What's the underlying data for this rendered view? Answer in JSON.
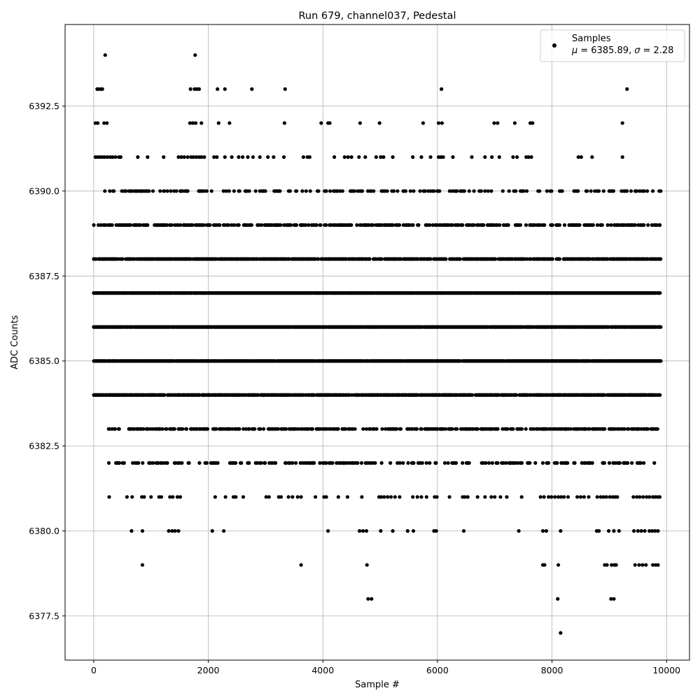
{
  "chart_data": {
    "type": "scatter",
    "title": "Run 679, channel037, Pedestal",
    "xlabel": "Sample #",
    "ylabel": "ADC Counts",
    "xlim": [
      -500,
      10400
    ],
    "ylim": [
      6376.2,
      6394.9
    ],
    "xticks": [
      0,
      2000,
      4000,
      6000,
      8000,
      10000
    ],
    "xtick_labels": [
      "0",
      "2000",
      "4000",
      "6000",
      "8000",
      "10000"
    ],
    "yticks": [
      6377.5,
      6380.0,
      6382.5,
      6385.0,
      6387.5,
      6390.0,
      6392.5
    ],
    "ytick_labels": [
      "6377.5",
      "6380.0",
      "6382.5",
      "6385.0",
      "6387.5",
      "6390.0",
      "6392.5"
    ],
    "grid": true,
    "legend_position": "top-right",
    "legend": {
      "label": "Samples",
      "stats_mu_symbol": "μ",
      "stats_sigma_symbol": "σ",
      "stats_mu_value": "= 6385.89,",
      "stats_sigma_value": "= 2.28"
    },
    "marker_color": "#000000",
    "series": [
      {
        "name": "Samples",
        "x_range": [
          0,
          9900
        ],
        "mean": 6385.89,
        "std": 2.28,
        "dense_levels": [
          6382,
          6383,
          6384,
          6385,
          6386,
          6387,
          6388,
          6389,
          6390
        ],
        "points": [
          [
            200,
            6394
          ],
          [
            1770,
            6394
          ],
          [
            60,
            6393
          ],
          [
            80,
            6393
          ],
          [
            120,
            6393
          ],
          [
            150,
            6393
          ],
          [
            1690,
            6393
          ],
          [
            1760,
            6393
          ],
          [
            1800,
            6393
          ],
          [
            1840,
            6393
          ],
          [
            2160,
            6393
          ],
          [
            2290,
            6393
          ],
          [
            2760,
            6393
          ],
          [
            3340,
            6393
          ],
          [
            6070,
            6393
          ],
          [
            9310,
            6393
          ],
          [
            30,
            6392
          ],
          [
            70,
            6392
          ],
          [
            180,
            6392
          ],
          [
            230,
            6392
          ],
          [
            1680,
            6392
          ],
          [
            1730,
            6392
          ],
          [
            1780,
            6392
          ],
          [
            1880,
            6392
          ],
          [
            2180,
            6392
          ],
          [
            2370,
            6392
          ],
          [
            3330,
            6392
          ],
          [
            3970,
            6392
          ],
          [
            4090,
            6392
          ],
          [
            4120,
            6392
          ],
          [
            4650,
            6392
          ],
          [
            4990,
            6392
          ],
          [
            5750,
            6392
          ],
          [
            6020,
            6392
          ],
          [
            6080,
            6392
          ],
          [
            6990,
            6392
          ],
          [
            7050,
            6392
          ],
          [
            7350,
            6392
          ],
          [
            7620,
            6392
          ],
          [
            7660,
            6392
          ],
          [
            9230,
            6392
          ],
          [
            4850,
            6378
          ],
          [
            4790,
            6378
          ],
          [
            8100,
            6378
          ],
          [
            9030,
            6378
          ],
          [
            9080,
            6378
          ],
          [
            8150,
            6377
          ],
          [
            850,
            6379
          ],
          [
            3620,
            6379
          ],
          [
            4770,
            6379
          ],
          [
            7840,
            6379
          ],
          [
            7870,
            6379
          ],
          [
            8110,
            6379
          ],
          [
            8920,
            6379
          ],
          [
            8960,
            6379
          ],
          [
            9040,
            6379
          ],
          [
            9090,
            6379
          ],
          [
            9120,
            6379
          ],
          [
            9450,
            6379
          ],
          [
            9520,
            6379
          ],
          [
            9580,
            6379
          ],
          [
            9640,
            6379
          ],
          [
            9760,
            6379
          ],
          [
            9810,
            6379
          ],
          [
            9850,
            6379
          ],
          [
            660,
            6380
          ],
          [
            850,
            6380
          ],
          [
            1310,
            6380
          ],
          [
            1370,
            6380
          ],
          [
            1420,
            6380
          ],
          [
            1480,
            6380
          ],
          [
            2070,
            6380
          ],
          [
            2270,
            6380
          ],
          [
            4090,
            6380
          ],
          [
            4640,
            6380
          ],
          [
            4700,
            6380
          ],
          [
            4760,
            6380
          ],
          [
            5010,
            6380
          ],
          [
            5220,
            6380
          ],
          [
            5480,
            6380
          ],
          [
            5580,
            6380
          ],
          [
            5940,
            6380
          ],
          [
            5980,
            6380
          ],
          [
            6460,
            6380
          ],
          [
            7420,
            6380
          ],
          [
            7840,
            6380
          ],
          [
            7900,
            6380
          ],
          [
            8150,
            6380
          ],
          [
            8780,
            6380
          ],
          [
            8820,
            6380
          ],
          [
            8990,
            6380
          ],
          [
            9080,
            6380
          ],
          [
            9170,
            6380
          ],
          [
            9430,
            6380
          ],
          [
            9500,
            6380
          ],
          [
            9560,
            6380
          ],
          [
            9620,
            6380
          ],
          [
            9700,
            6380
          ],
          [
            9750,
            6380
          ],
          [
            9800,
            6380
          ],
          [
            9850,
            6380
          ],
          [
            270,
            6381
          ],
          [
            580,
            6381
          ],
          [
            670,
            6381
          ],
          [
            840,
            6381
          ],
          [
            880,
            6381
          ],
          [
            1000,
            6381
          ],
          [
            1140,
            6381
          ],
          [
            1180,
            6381
          ],
          [
            1330,
            6381
          ],
          [
            1380,
            6381
          ],
          [
            1460,
            6381
          ],
          [
            1510,
            6381
          ],
          [
            2120,
            6381
          ],
          [
            2300,
            6381
          ],
          [
            2440,
            6381
          ],
          [
            2480,
            6381
          ],
          [
            2610,
            6381
          ],
          [
            3010,
            6381
          ],
          [
            3060,
            6381
          ],
          [
            3230,
            6381
          ],
          [
            3270,
            6381
          ],
          [
            3400,
            6381
          ],
          [
            3470,
            6381
          ],
          [
            3560,
            6381
          ],
          [
            3620,
            6381
          ],
          [
            3870,
            6381
          ],
          [
            4020,
            6381
          ],
          [
            4060,
            6381
          ],
          [
            4270,
            6381
          ],
          [
            4430,
            6381
          ],
          [
            4680,
            6381
          ],
          [
            4980,
            6381
          ],
          [
            5020,
            6381
          ],
          [
            5070,
            6381
          ],
          [
            5130,
            6381
          ],
          [
            5190,
            6381
          ],
          [
            5260,
            6381
          ],
          [
            5340,
            6381
          ],
          [
            5570,
            6381
          ],
          [
            5650,
            6381
          ],
          [
            5720,
            6381
          ],
          [
            5810,
            6381
          ],
          [
            5950,
            6381
          ],
          [
            5990,
            6381
          ],
          [
            6210,
            6381
          ],
          [
            6440,
            6381
          ],
          [
            6480,
            6381
          ],
          [
            6530,
            6381
          ],
          [
            6700,
            6381
          ],
          [
            6830,
            6381
          ],
          [
            6940,
            6381
          ],
          [
            7000,
            6381
          ],
          [
            7100,
            6381
          ],
          [
            7210,
            6381
          ],
          [
            7470,
            6381
          ],
          [
            7800,
            6381
          ],
          [
            7860,
            6381
          ],
          [
            7940,
            6381
          ],
          [
            7990,
            6381
          ],
          [
            8050,
            6381
          ],
          [
            8110,
            6381
          ],
          [
            8160,
            6381
          ],
          [
            8210,
            6381
          ],
          [
            8280,
            6381
          ],
          [
            8440,
            6381
          ],
          [
            8500,
            6381
          ],
          [
            8560,
            6381
          ],
          [
            8640,
            6381
          ],
          [
            8790,
            6381
          ],
          [
            8850,
            6381
          ],
          [
            8900,
            6381
          ],
          [
            8950,
            6381
          ],
          [
            9010,
            6381
          ],
          [
            9060,
            6381
          ],
          [
            9100,
            6381
          ],
          [
            9140,
            6381
          ],
          [
            9420,
            6381
          ],
          [
            9480,
            6381
          ],
          [
            9530,
            6381
          ],
          [
            9590,
            6381
          ],
          [
            9650,
            6381
          ],
          [
            9700,
            6381
          ],
          [
            9760,
            6381
          ],
          [
            9800,
            6381
          ],
          [
            9840,
            6381
          ],
          [
            9880,
            6381
          ],
          [
            30,
            6391
          ],
          [
            70,
            6391
          ],
          [
            110,
            6391
          ],
          [
            150,
            6391
          ],
          [
            190,
            6391
          ],
          [
            240,
            6391
          ],
          [
            290,
            6391
          ],
          [
            330,
            6391
          ],
          [
            380,
            6391
          ],
          [
            440,
            6391
          ],
          [
            470,
            6391
          ],
          [
            770,
            6391
          ],
          [
            940,
            6391
          ],
          [
            1220,
            6391
          ],
          [
            1480,
            6391
          ],
          [
            1530,
            6391
          ],
          [
            1580,
            6391
          ],
          [
            1640,
            6391
          ],
          [
            1700,
            6391
          ],
          [
            1740,
            6391
          ],
          [
            1790,
            6391
          ],
          [
            1840,
            6391
          ],
          [
            1880,
            6391
          ],
          [
            1930,
            6391
          ],
          [
            2100,
            6391
          ],
          [
            2150,
            6391
          ],
          [
            2290,
            6391
          ],
          [
            2410,
            6391
          ],
          [
            2530,
            6391
          ],
          [
            2600,
            6391
          ],
          [
            2690,
            6391
          ],
          [
            2780,
            6391
          ],
          [
            2900,
            6391
          ],
          [
            3040,
            6391
          ],
          [
            3140,
            6391
          ],
          [
            3320,
            6391
          ],
          [
            3660,
            6391
          ],
          [
            3730,
            6391
          ],
          [
            3770,
            6391
          ],
          [
            4200,
            6391
          ],
          [
            4380,
            6391
          ],
          [
            4440,
            6391
          ],
          [
            4500,
            6391
          ],
          [
            4630,
            6391
          ],
          [
            4740,
            6391
          ],
          [
            4930,
            6391
          ],
          [
            5010,
            6391
          ],
          [
            5060,
            6391
          ],
          [
            5220,
            6391
          ],
          [
            5570,
            6391
          ],
          [
            5720,
            6391
          ],
          [
            5880,
            6391
          ],
          [
            6020,
            6391
          ],
          [
            6060,
            6391
          ],
          [
            6100,
            6391
          ],
          [
            6270,
            6391
          ],
          [
            6600,
            6391
          ],
          [
            6830,
            6391
          ],
          [
            6950,
            6391
          ],
          [
            7080,
            6391
          ],
          [
            7320,
            6391
          ],
          [
            7390,
            6391
          ],
          [
            7550,
            6391
          ],
          [
            7590,
            6391
          ],
          [
            7640,
            6391
          ],
          [
            8460,
            6391
          ],
          [
            8510,
            6391
          ],
          [
            8700,
            6391
          ],
          [
            9230,
            6391
          ]
        ]
      }
    ]
  }
}
